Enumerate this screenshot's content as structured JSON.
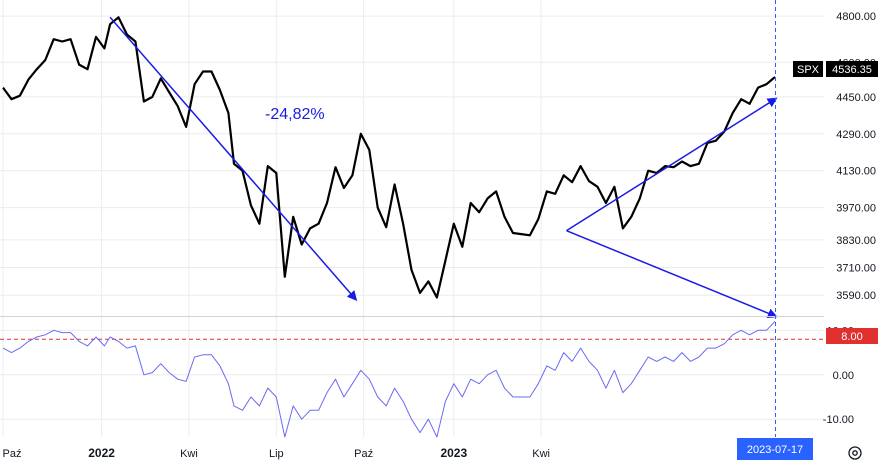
{
  "chart_data": {
    "type": "line",
    "annotation": "-24,82%",
    "price_panel": {
      "symbol": "SPX",
      "last_value": "4536.35",
      "ylim": [
        3500,
        4870
      ],
      "y_ticks": [
        "4800.00",
        "4600.00",
        "4450.00",
        "4290.00",
        "4130.00",
        "3970.00",
        "3830.00",
        "3710.00",
        "3590.00"
      ],
      "series": [
        {
          "color": "#000000",
          "x": [
            0.0,
            1.5,
            3.0,
            4.5,
            6.0,
            7.5,
            9.0,
            10.5,
            12.0,
            13.5,
            15.0,
            16.5,
            18.0,
            19.0,
            20.5,
            22.0,
            23.5,
            25.0,
            26.5,
            28.0,
            29.5,
            31.0,
            32.5,
            34.0,
            35.5,
            37.0,
            38.5,
            40.0,
            41.0,
            42.5,
            44.0,
            45.5,
            47.0,
            48.5,
            50.0,
            51.5,
            53.0,
            54.5,
            56.0,
            57.5,
            59.0,
            60.5,
            62.0,
            63.5,
            65.0,
            66.5,
            68.0,
            69.5,
            71.0,
            72.5,
            74.0,
            75.5,
            77.0,
            78.5,
            80.0,
            81.5,
            83.0,
            84.5,
            86.0,
            87.5,
            89.0,
            90.5,
            92.0,
            93.5,
            95.0,
            96.5,
            98.0,
            99.5,
            101.0,
            102.5,
            104.0,
            105.5,
            107.0,
            108.5,
            110.0,
            111.5,
            113.0,
            114.5,
            116.0,
            117.5,
            119.0,
            120.5,
            122.0,
            123.5,
            125.0,
            126.5,
            128.0,
            129.5,
            131.0,
            132.5,
            134.0,
            135.5,
            137.0
          ],
          "y": [
            4490,
            4440,
            4455,
            4525,
            4570,
            4610,
            4700,
            4690,
            4700,
            4590,
            4570,
            4710,
            4660,
            4765,
            4795,
            4720,
            4690,
            4430,
            4450,
            4530,
            4470,
            4410,
            4320,
            4505,
            4560,
            4560,
            4480,
            4380,
            4160,
            4130,
            3980,
            3900,
            4150,
            4120,
            3670,
            3930,
            3810,
            3880,
            3900,
            3990,
            4145,
            4055,
            4110,
            4290,
            4220,
            3970,
            3885,
            4070,
            3900,
            3700,
            3600,
            3650,
            3580,
            3740,
            3900,
            3800,
            3990,
            3950,
            4010,
            4040,
            3930,
            3860,
            3855,
            3850,
            3920,
            4040,
            4030,
            4110,
            4080,
            4150,
            4085,
            4060,
            3990,
            4060,
            3880,
            3930,
            4010,
            4130,
            4120,
            4150,
            4145,
            4170,
            4150,
            4160,
            4250,
            4260,
            4300,
            4380,
            4440,
            4420,
            4490,
            4505,
            4536
          ]
        }
      ]
    },
    "indicator_panel": {
      "ylim": [
        -14,
        13
      ],
      "y_ticks": [
        "10.00",
        "0.00",
        "-10.00"
      ],
      "reference_value": "8.00",
      "series": [
        {
          "color": "#6b6bf2",
          "x": [
            0.0,
            1.5,
            3.0,
            4.5,
            6.0,
            7.5,
            9.0,
            10.5,
            12.0,
            13.5,
            15.0,
            16.5,
            18.0,
            19.0,
            20.5,
            22.0,
            23.5,
            25.0,
            26.5,
            28.0,
            29.5,
            31.0,
            32.5,
            34.0,
            35.5,
            37.0,
            38.5,
            40.0,
            41.0,
            42.5,
            44.0,
            45.5,
            47.0,
            48.5,
            50.0,
            51.5,
            53.0,
            54.5,
            56.0,
            57.5,
            59.0,
            60.5,
            62.0,
            63.5,
            65.0,
            66.5,
            68.0,
            69.5,
            71.0,
            72.5,
            74.0,
            75.5,
            77.0,
            78.5,
            80.0,
            81.5,
            83.0,
            84.5,
            86.0,
            87.5,
            89.0,
            90.5,
            92.0,
            93.5,
            95.0,
            96.5,
            98.0,
            99.5,
            101.0,
            102.5,
            104.0,
            105.5,
            107.0,
            108.5,
            110.0,
            111.5,
            113.0,
            114.5,
            116.0,
            117.5,
            119.0,
            120.5,
            122.0,
            123.5,
            125.0,
            126.5,
            128.0,
            129.5,
            131.0,
            132.5,
            134.0,
            135.5,
            137.0
          ],
          "y": [
            6,
            5,
            6,
            7.5,
            8.5,
            9,
            10,
            9.5,
            9.5,
            7.5,
            6.5,
            8.5,
            6.5,
            8.5,
            7.5,
            6,
            6.5,
            0,
            0.5,
            2.5,
            0.5,
            -1,
            -1.5,
            4,
            4.5,
            4.5,
            2,
            -2,
            -7,
            -8,
            -5,
            -7,
            -3,
            -5,
            -14,
            -7,
            -10,
            -8,
            -8,
            -4,
            -1,
            -5,
            -2,
            1,
            -1,
            -5,
            -7,
            -3,
            -6,
            -10,
            -13,
            -10,
            -14,
            -6,
            -2,
            -5,
            -1,
            -2,
            0,
            1,
            -3,
            -5,
            -5,
            -5,
            -2,
            2,
            1,
            5,
            3,
            6,
            3,
            1,
            -3,
            1,
            -4,
            -2,
            1,
            4,
            3,
            4,
            3,
            5,
            3,
            4,
            6,
            6,
            7,
            9,
            10,
            9,
            10,
            10,
            12
          ]
        }
      ]
    },
    "x_ticks": [
      {
        "x": 0,
        "label": "Paź",
        "bold": false
      },
      {
        "x": 17.5,
        "label": "2022",
        "bold": true
      },
      {
        "x": 33,
        "label": "Kwi",
        "bold": false
      },
      {
        "x": 48.5,
        "label": "Lip",
        "bold": false
      },
      {
        "x": 64,
        "label": "Paź",
        "bold": false
      },
      {
        "x": 80,
        "label": "2023",
        "bold": true
      },
      {
        "x": 95.5,
        "label": "Kwi",
        "bold": false
      }
    ],
    "current_date": "2023-07-17",
    "arrows": [
      {
        "from": [
          19.0,
          4795
        ],
        "to": [
          62.5,
          3575
        ],
        "panel": "price"
      },
      {
        "from": [
          100.0,
          3870
        ],
        "to": [
          137.0,
          4440
        ],
        "panel": "price"
      },
      {
        "from": [
          100.0,
          3870
        ],
        "to": [
          137.0,
          3500
        ],
        "panel": "price"
      }
    ],
    "grid": true,
    "colors": {
      "price_line": "#000000",
      "indicator_line": "#6b6bf2",
      "arrows": "#1a1ae6",
      "reference_line": "#e03030",
      "grid": "#ececec"
    },
    "icons": [
      "settings-gear-icon"
    ]
  }
}
